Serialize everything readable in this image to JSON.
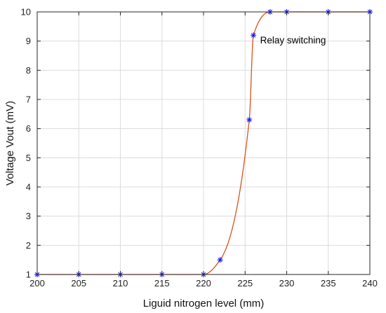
{
  "chart_data": {
    "type": "line",
    "title": "",
    "xlabel": "Liguid nitrogen level (mm)",
    "ylabel": "Voltage Vout (mV)",
    "xlim": [
      200,
      240
    ],
    "ylim": [
      1,
      10
    ],
    "xticks": [
      "200",
      "205",
      "210",
      "215",
      "220",
      "225",
      "230",
      "235",
      "240"
    ],
    "yticks": [
      "1",
      "2",
      "3",
      "4",
      "5",
      "6",
      "7",
      "8",
      "9",
      "10"
    ],
    "grid": true,
    "series": [
      {
        "style": "markers",
        "marker": "asterisk",
        "color": "#1a1aff",
        "x": [
          200,
          205,
          210,
          215,
          220,
          222,
          225.5,
          226,
          228,
          230,
          235,
          240
        ],
        "y": [
          1,
          1,
          1,
          1,
          1,
          1.5,
          6.3,
          9.2,
          10,
          10,
          10,
          10
        ]
      },
      {
        "style": "smooth-line",
        "color": "#d95319",
        "x": [
          200,
          205,
          210,
          215,
          220,
          222,
          225.5,
          226,
          228,
          230,
          235,
          240
        ],
        "y": [
          1,
          1,
          1,
          1,
          1,
          1.5,
          6.3,
          9.2,
          10,
          10,
          10,
          10
        ]
      }
    ],
    "annotations": [
      {
        "text": "Relay switching",
        "x": 226.8,
        "y": 8.92
      }
    ]
  }
}
